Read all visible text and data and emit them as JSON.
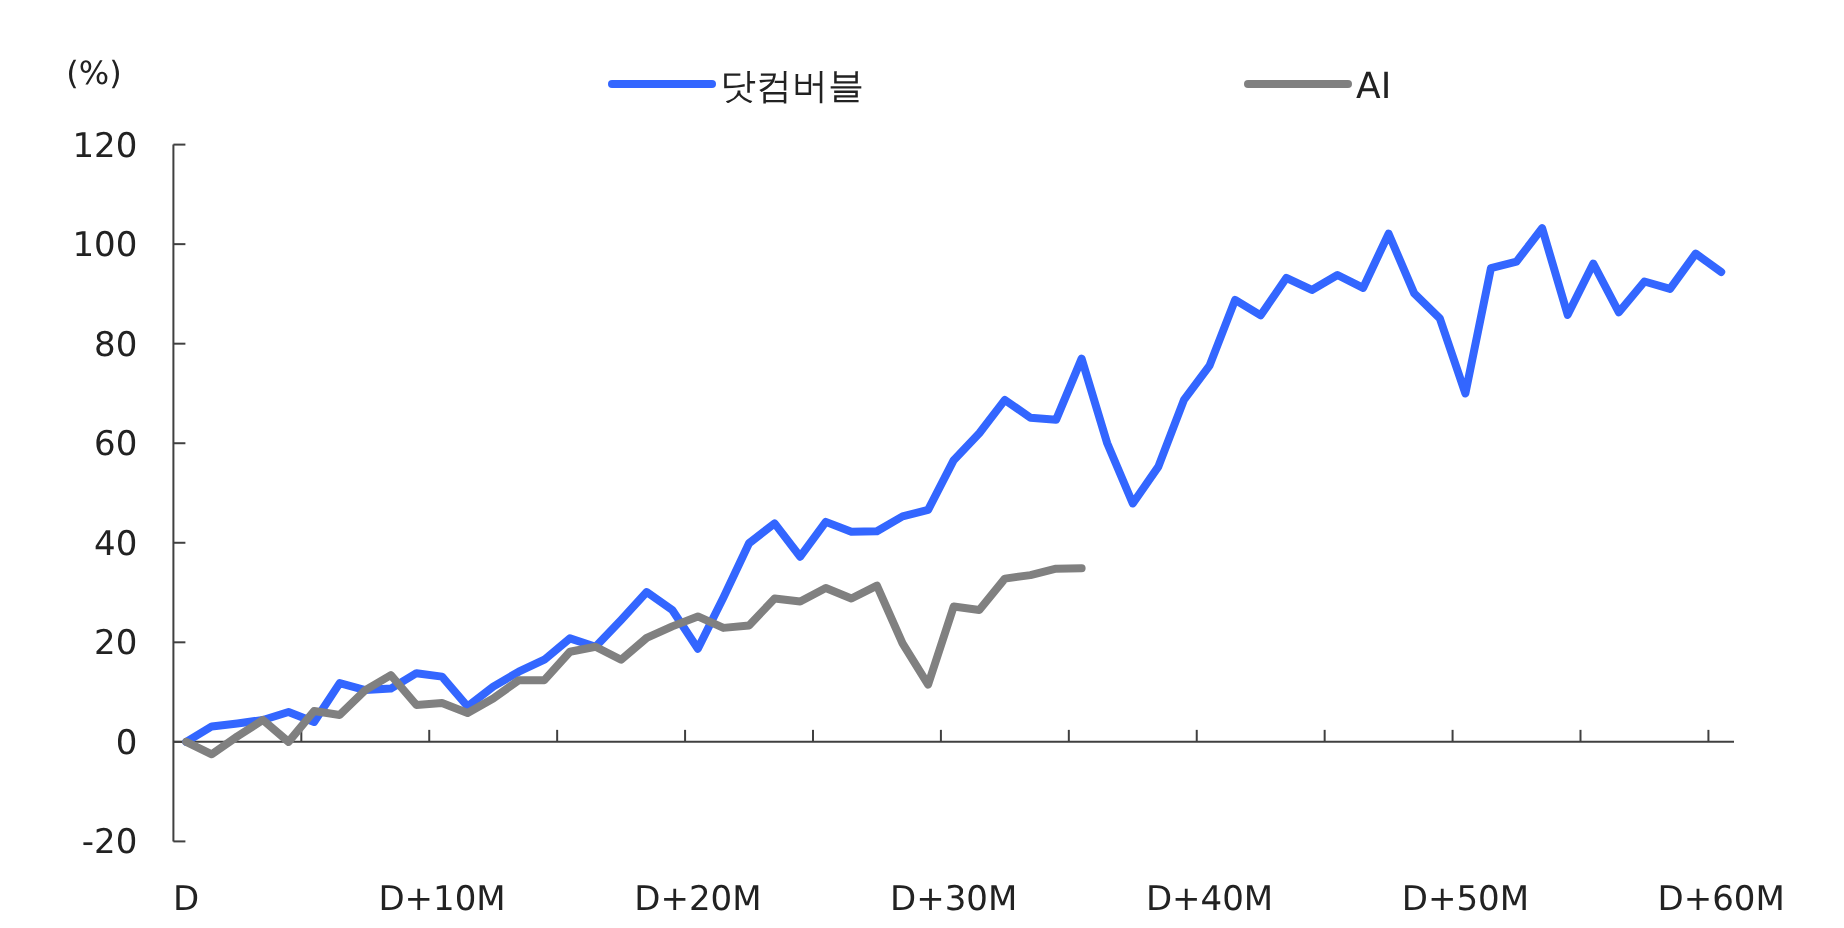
{
  "chart_data": {
    "type": "line",
    "ylabel": "(%)",
    "categories": [
      "D",
      null,
      null,
      null,
      null,
      null,
      null,
      null,
      null,
      null,
      "D+10M",
      null,
      null,
      null,
      null,
      null,
      null,
      null,
      null,
      null,
      "D+20M",
      null,
      null,
      null,
      null,
      null,
      null,
      null,
      null,
      null,
      "D+30M",
      null,
      null,
      null,
      null,
      null,
      null,
      null,
      null,
      null,
      "D+40M",
      null,
      null,
      null,
      null,
      null,
      null,
      null,
      null,
      null,
      "D+50M",
      null,
      null,
      null,
      null,
      null,
      null,
      null,
      null,
      null,
      "D+60M"
    ],
    "series": [
      {
        "name": "닷컴버블",
        "color": "#3366ff",
        "values": [
          0,
          3.1,
          3.7,
          4.4,
          6.0,
          4.0,
          11.8,
          10.4,
          10.7,
          13.8,
          13.1,
          7.1,
          11.1,
          14.1,
          16.5,
          20.8,
          19.1,
          24.5,
          30.1,
          26.5,
          18.7,
          29,
          39.9,
          43.9,
          37.2,
          44.2,
          42.2,
          42.3,
          45.3,
          46.6,
          56.6,
          62.0,
          68.7,
          65.1,
          64.7,
          77.0,
          60.0,
          47.9,
          55.3,
          68.7,
          75.6,
          88.8,
          85.7,
          93.2,
          90.8,
          93.8,
          91.2,
          102.1,
          90.1,
          85.1,
          70.0,
          95.2,
          96.5,
          103.2,
          85.8,
          96.1,
          86.3,
          92.5,
          91.0,
          98.1,
          94.4
        ]
      },
      {
        "name": "AI",
        "color": "#808080",
        "values": [
          0,
          -2.5,
          1.1,
          4.4,
          0,
          6.2,
          5.4,
          10.4,
          13.4,
          7.4,
          7.8,
          5.8,
          8.7,
          12.4,
          12.4,
          18.1,
          19.1,
          16.5,
          20.9,
          23.2,
          25.2,
          22.9,
          23.4,
          28.8,
          28.2,
          30.9,
          28.8,
          31.4,
          19.8,
          11.5,
          27.2,
          26.5,
          32.8,
          33.5,
          34.8,
          34.9,
          null,
          null,
          null,
          null,
          null,
          null,
          null,
          null,
          null,
          null,
          null,
          null,
          null,
          null,
          null,
          null,
          null,
          null,
          null,
          null,
          null,
          null,
          null,
          null,
          null
        ]
      }
    ],
    "ylim": [
      -20,
      120
    ],
    "yticks": [
      -20,
      0,
      20,
      40,
      60,
      80,
      100,
      120
    ],
    "legend": "top",
    "line_style": "solid",
    "marker": "none"
  }
}
